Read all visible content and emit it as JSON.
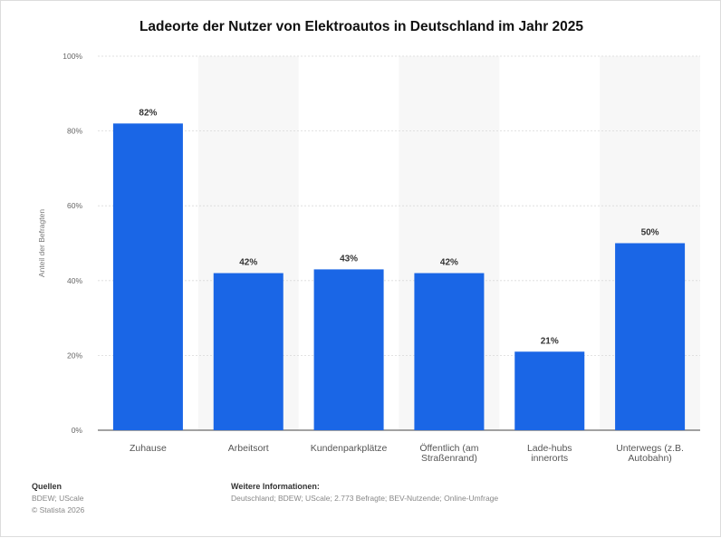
{
  "title": "Ladeorte der Nutzer von Elektroautos in Deutschland im Jahr 2025",
  "chart_data": {
    "type": "bar",
    "title": "Ladeorte der Nutzer von Elektroautos in Deutschland im Jahr 2025",
    "categories": [
      "Zuhause",
      "Arbeitsort",
      "Kundenparkplätze",
      "Öffentlich (am Straßenrand)",
      "Lade-hubs innerorts",
      "Unterwegs (z.B. Autobahn)"
    ],
    "category_lines": [
      [
        "Zuhause"
      ],
      [
        "Arbeitsort"
      ],
      [
        "Kundenparkplätze"
      ],
      [
        "Öffentlich (am",
        "Straßenrand)"
      ],
      [
        "Lade-hubs",
        "innerorts"
      ],
      [
        "Unterwegs (z.B.",
        "Autobahn)"
      ]
    ],
    "values": [
      82,
      42,
      43,
      42,
      21,
      50
    ],
    "value_labels": [
      "82%",
      "42%",
      "43%",
      "42%",
      "21%",
      "50%"
    ],
    "xlabel": "",
    "ylabel": "Anteil der Befragten",
    "ylim": [
      0,
      100
    ],
    "yticks": [
      0,
      20,
      40,
      60,
      80,
      100
    ],
    "ytick_labels": [
      "0%",
      "20%",
      "40%",
      "60%",
      "80%",
      "100%"
    ],
    "grid": true,
    "bar_color": "#1a66e6"
  },
  "footer": {
    "sources_heading": "Quellen",
    "sources_line1": "BDEW; UScale",
    "sources_line2": "© Statista 2026",
    "info_heading": "Weitere Informationen:",
    "info_text": "Deutschland; BDEW; UScale; 2.773 Befragte; BEV-Nutzende; Online-Umfrage"
  }
}
